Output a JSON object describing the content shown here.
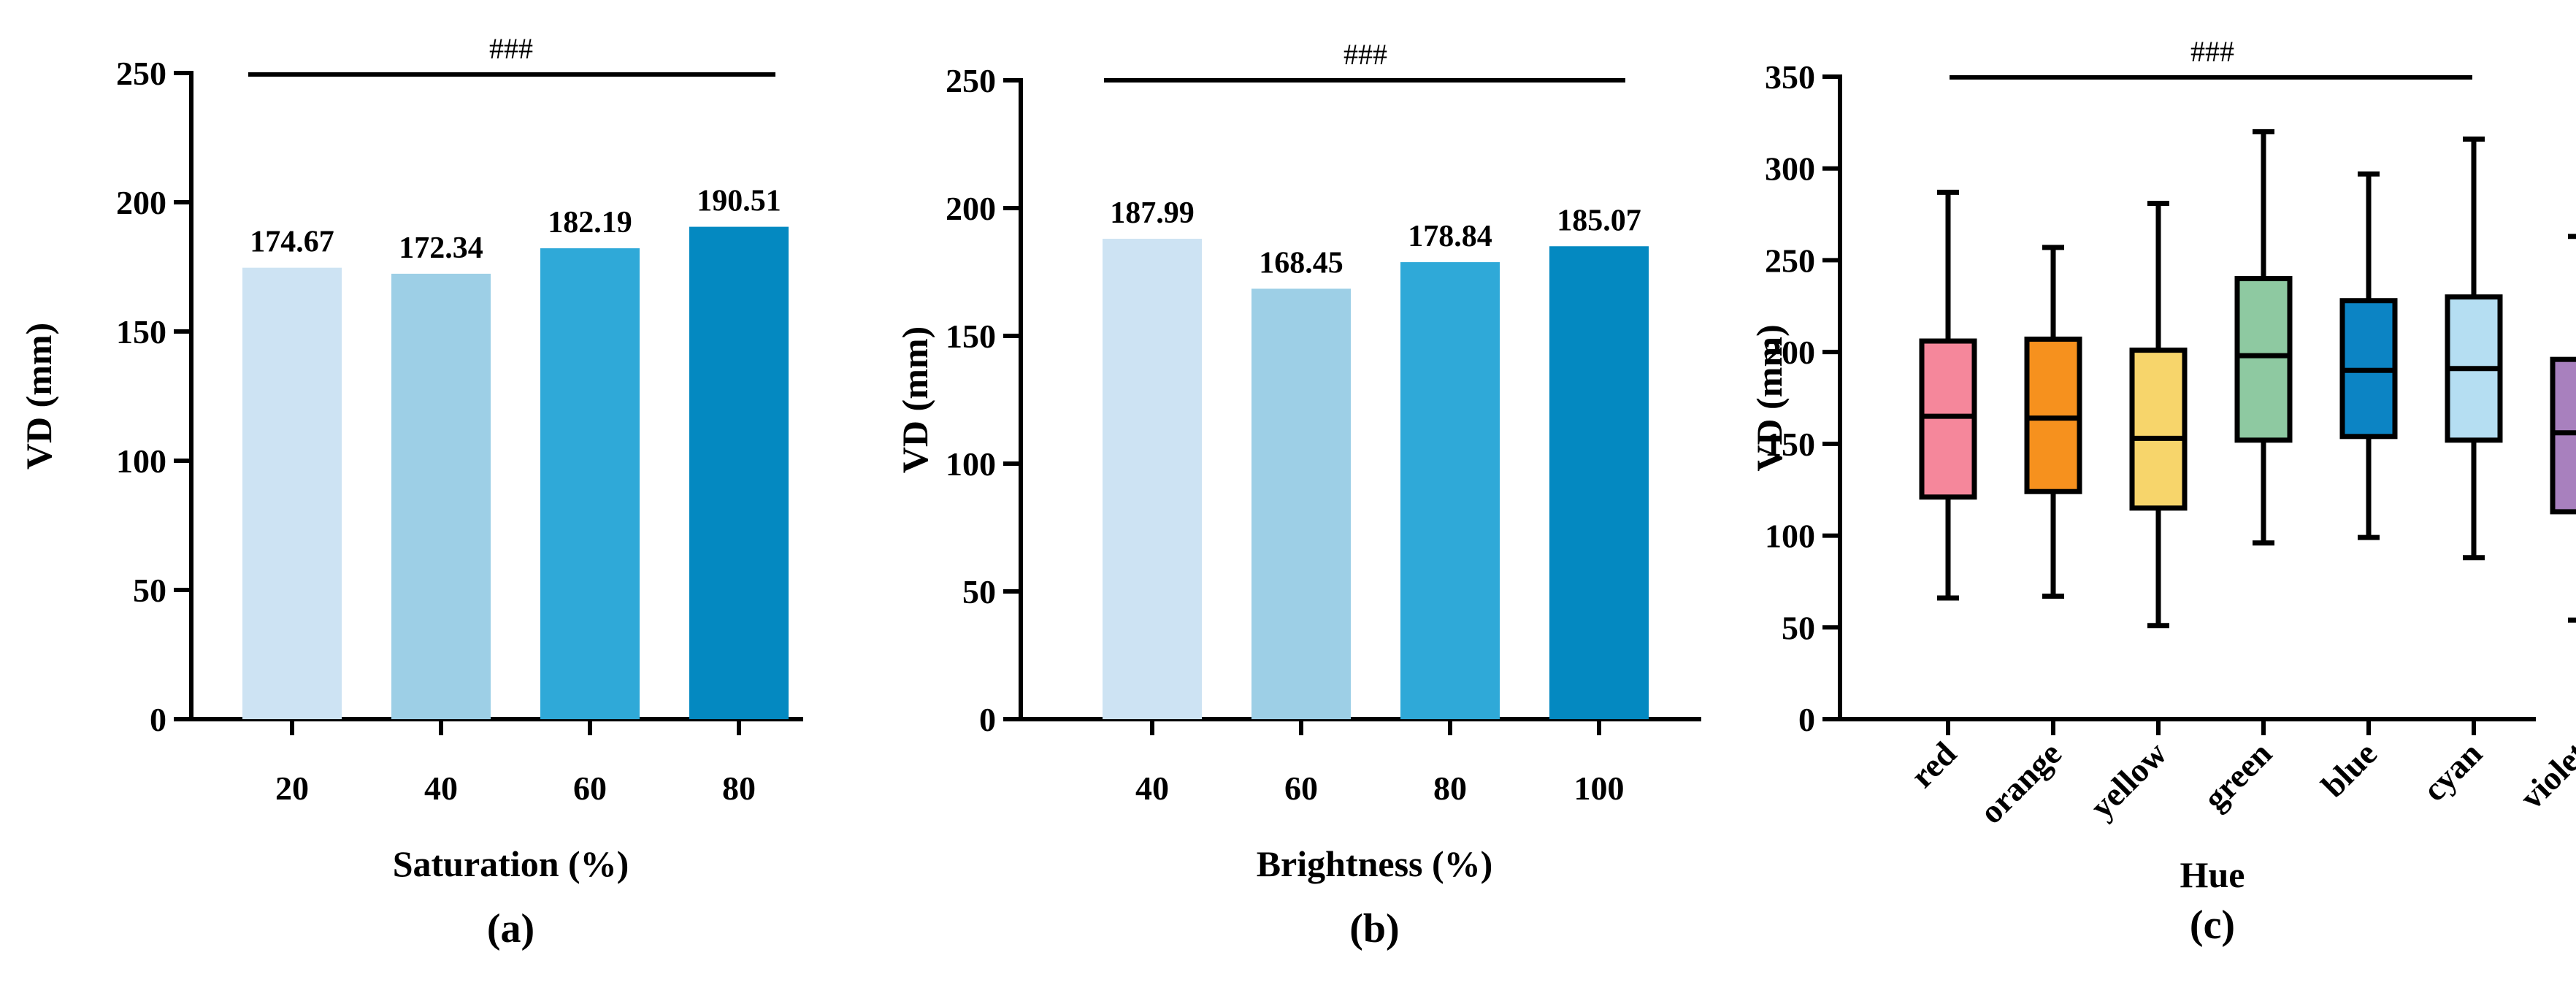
{
  "chart_data": [
    {
      "id": "a",
      "type": "bar",
      "categories": [
        "20",
        "40",
        "60",
        "80"
      ],
      "values": [
        174.67,
        172.34,
        182.19,
        190.51
      ],
      "value_labels": [
        "174.67",
        "172.34",
        "182.19",
        "190.51"
      ],
      "bar_colors": [
        "#cde3f3",
        "#9dcfe6",
        "#2fa9d8",
        "#0489c1"
      ],
      "xlabel": "Saturation (%)",
      "ylabel": "VD (mm)",
      "ylim": [
        0,
        250
      ],
      "yticks": [
        "0",
        "50",
        "100",
        "150",
        "200",
        "250"
      ],
      "significance": "###",
      "panel_label": "(a)",
      "grid": false
    },
    {
      "id": "b",
      "type": "bar",
      "categories": [
        "40",
        "60",
        "80",
        "100"
      ],
      "values": [
        187.99,
        168.45,
        178.84,
        185.07
      ],
      "value_labels": [
        "187.99",
        "168.45",
        "178.84",
        "185.07"
      ],
      "bar_colors": [
        "#cde3f3",
        "#9dcfe6",
        "#2fa9d8",
        "#0489c1"
      ],
      "xlabel": "Brightness (%)",
      "ylabel": "VD (mm)",
      "ylim": [
        0,
        250
      ],
      "yticks": [
        "0",
        "50",
        "100",
        "150",
        "200",
        "250"
      ],
      "significance": "###",
      "panel_label": "(b)",
      "grid": false
    },
    {
      "id": "c",
      "type": "box",
      "categories": [
        "red",
        "orange",
        "yellow",
        "green",
        "blue",
        "cyan",
        "violet"
      ],
      "boxes": [
        {
          "min": 66,
          "q1": 121,
          "median": 165,
          "q3": 206,
          "max": 287,
          "color": "#f5879b"
        },
        {
          "min": 67,
          "q1": 124,
          "median": 164,
          "q3": 207,
          "max": 257,
          "color": "#f6911e"
        },
        {
          "min": 51,
          "q1": 115,
          "median": 153,
          "q3": 201,
          "max": 281,
          "color": "#f7d56b"
        },
        {
          "min": 96,
          "q1": 152,
          "median": 198,
          "q3": 240,
          "max": 320,
          "color": "#8ec9a1"
        },
        {
          "min": 99,
          "q1": 154,
          "median": 190,
          "q3": 228,
          "max": 297,
          "color": "#0c84c4"
        },
        {
          "min": 88,
          "q1": 152,
          "median": 191,
          "q3": 230,
          "max": 316,
          "color": "#b5def2"
        },
        {
          "min": 54,
          "q1": 113,
          "median": 156,
          "q3": 196,
          "max": 263,
          "color": "#a880be"
        }
      ],
      "xlabel": "Hue",
      "ylabel": "VD (mm)",
      "ylim": [
        0,
        350
      ],
      "yticks": [
        "0",
        "50",
        "100",
        "150",
        "200",
        "250",
        "300",
        "350"
      ],
      "significance": "###",
      "panel_label": "(c)",
      "grid": false
    }
  ]
}
